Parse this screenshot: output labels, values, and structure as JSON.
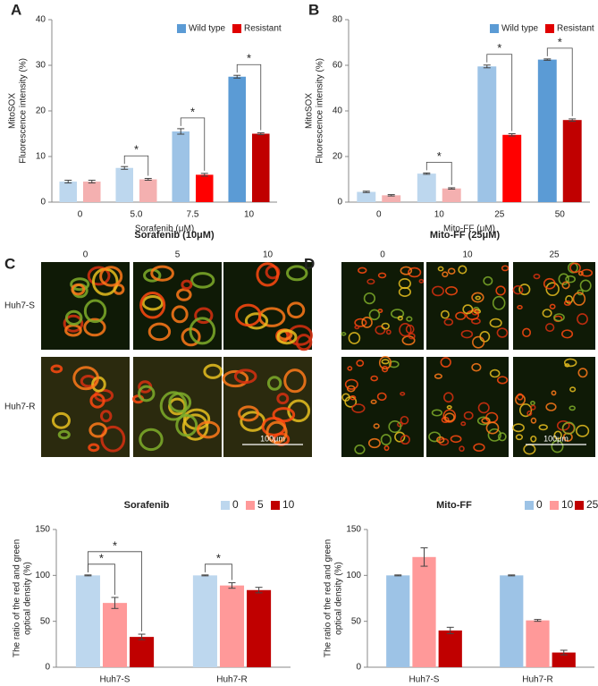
{
  "chart_data": [
    {
      "type": "bar",
      "panel": "A",
      "categories": [
        "0",
        "5.0",
        "7.5",
        "10"
      ],
      "xlabel": "Sorafenib (μM)",
      "ylabel": [
        "MitoSOX",
        "Fluorescence intensity (%)"
      ],
      "ylim": [
        0,
        40
      ],
      "yticks": [
        0,
        10,
        20,
        30,
        40
      ],
      "legend": "upper right",
      "series": [
        {
          "name": "Wild type",
          "color": "#5b9bd5",
          "colors": [
            "#bdd7ee",
            "#bdd7ee",
            "#9dc3e6",
            "#5b9bd5"
          ],
          "values": [
            4.5,
            7.5,
            15.5,
            27.5
          ],
          "errors": [
            0.3,
            0.3,
            0.6,
            0.3
          ]
        },
        {
          "name": "Resistant",
          "color": "#e00000",
          "colors": [
            "#f4b0b0",
            "#f4b0b0",
            "#ff0000",
            "#c00000"
          ],
          "values": [
            4.5,
            5,
            6,
            15
          ],
          "errors": [
            0.3,
            0.2,
            0.3,
            0.2
          ],
          "significance": [
            null,
            "*",
            "*",
            "*"
          ]
        }
      ]
    },
    {
      "type": "bar",
      "panel": "B",
      "categories": [
        "0",
        "10",
        "25",
        "50"
      ],
      "xlabel": "Mito-FF (μM)",
      "ylabel": [
        "MitoSOX",
        "Fluorescence intensity (%)"
      ],
      "ylim": [
        0,
        80
      ],
      "yticks": [
        0,
        20,
        40,
        60,
        80
      ],
      "legend": "upper right",
      "series": [
        {
          "name": "Wild type",
          "color": "#5b9bd5",
          "colors": [
            "#bdd7ee",
            "#bdd7ee",
            "#9dc3e6",
            "#5b9bd5"
          ],
          "values": [
            4.5,
            12.5,
            59.5,
            62.5
          ],
          "errors": [
            0.3,
            0.3,
            0.6,
            0.3
          ]
        },
        {
          "name": "Resistant",
          "color": "#e00000",
          "colors": [
            "#f4b0b0",
            "#f4b0b0",
            "#ff0000",
            "#c00000"
          ],
          "values": [
            3,
            6,
            29.5,
            36
          ],
          "errors": [
            0.3,
            0.3,
            0.5,
            0.5
          ],
          "significance": [
            null,
            "*",
            "*",
            "*"
          ]
        }
      ]
    },
    {
      "type": "bar",
      "title": "Sorafenib",
      "categories": [
        "Huh7-S",
        "Huh7-R"
      ],
      "ylabel": [
        "The ratio of the red and green",
        "optical density (%)"
      ],
      "ylim": [
        0,
        150
      ],
      "yticks": [
        0,
        50,
        100,
        150
      ],
      "legend": "upper right",
      "series": [
        {
          "name": "0",
          "color": "#bdd7ee",
          "values": [
            100,
            100
          ],
          "errors": [
            0.5,
            0.5
          ]
        },
        {
          "name": "5",
          "color": "#ff9999",
          "values": [
            70,
            89
          ],
          "errors": [
            6,
            3
          ],
          "significance": [
            "*",
            "*"
          ]
        },
        {
          "name": "10",
          "color": "#c00000",
          "values": [
            33,
            84
          ],
          "errors": [
            3,
            3
          ],
          "significance": [
            "*",
            null
          ]
        }
      ]
    },
    {
      "type": "bar",
      "title": "Mito-FF",
      "categories": [
        "Huh7-S",
        "Huh7-R"
      ],
      "ylabel": [
        "The ratio of the red and green",
        "optical density (%)"
      ],
      "ylim": [
        0,
        150
      ],
      "yticks": [
        0,
        50,
        100,
        150
      ],
      "legend": "upper right",
      "series": [
        {
          "name": "0",
          "color": "#9dc3e6",
          "values": [
            100,
            100
          ],
          "errors": [
            0.5,
            0.5
          ]
        },
        {
          "name": "10",
          "color": "#ff9999",
          "values": [
            120,
            51
          ],
          "errors": [
            10,
            1
          ]
        },
        {
          "name": "25",
          "color": "#c00000",
          "values": [
            40,
            16
          ],
          "errors": [
            3.5,
            2.5
          ]
        }
      ]
    }
  ],
  "image_panels": [
    {
      "panel": "C",
      "title": "Sorafenib (10μM)",
      "columns": [
        "0",
        "5",
        "10"
      ],
      "rows": [
        "Huh7-S",
        "Huh7-R"
      ],
      "scale_bar": "100μm"
    },
    {
      "panel": "D",
      "title": "Mito-FF (25μM)",
      "columns": [
        "0",
        "10",
        "25"
      ],
      "rows": [
        "Huh7-S",
        "Huh7-R"
      ],
      "scale_bar": "100μm"
    }
  ]
}
